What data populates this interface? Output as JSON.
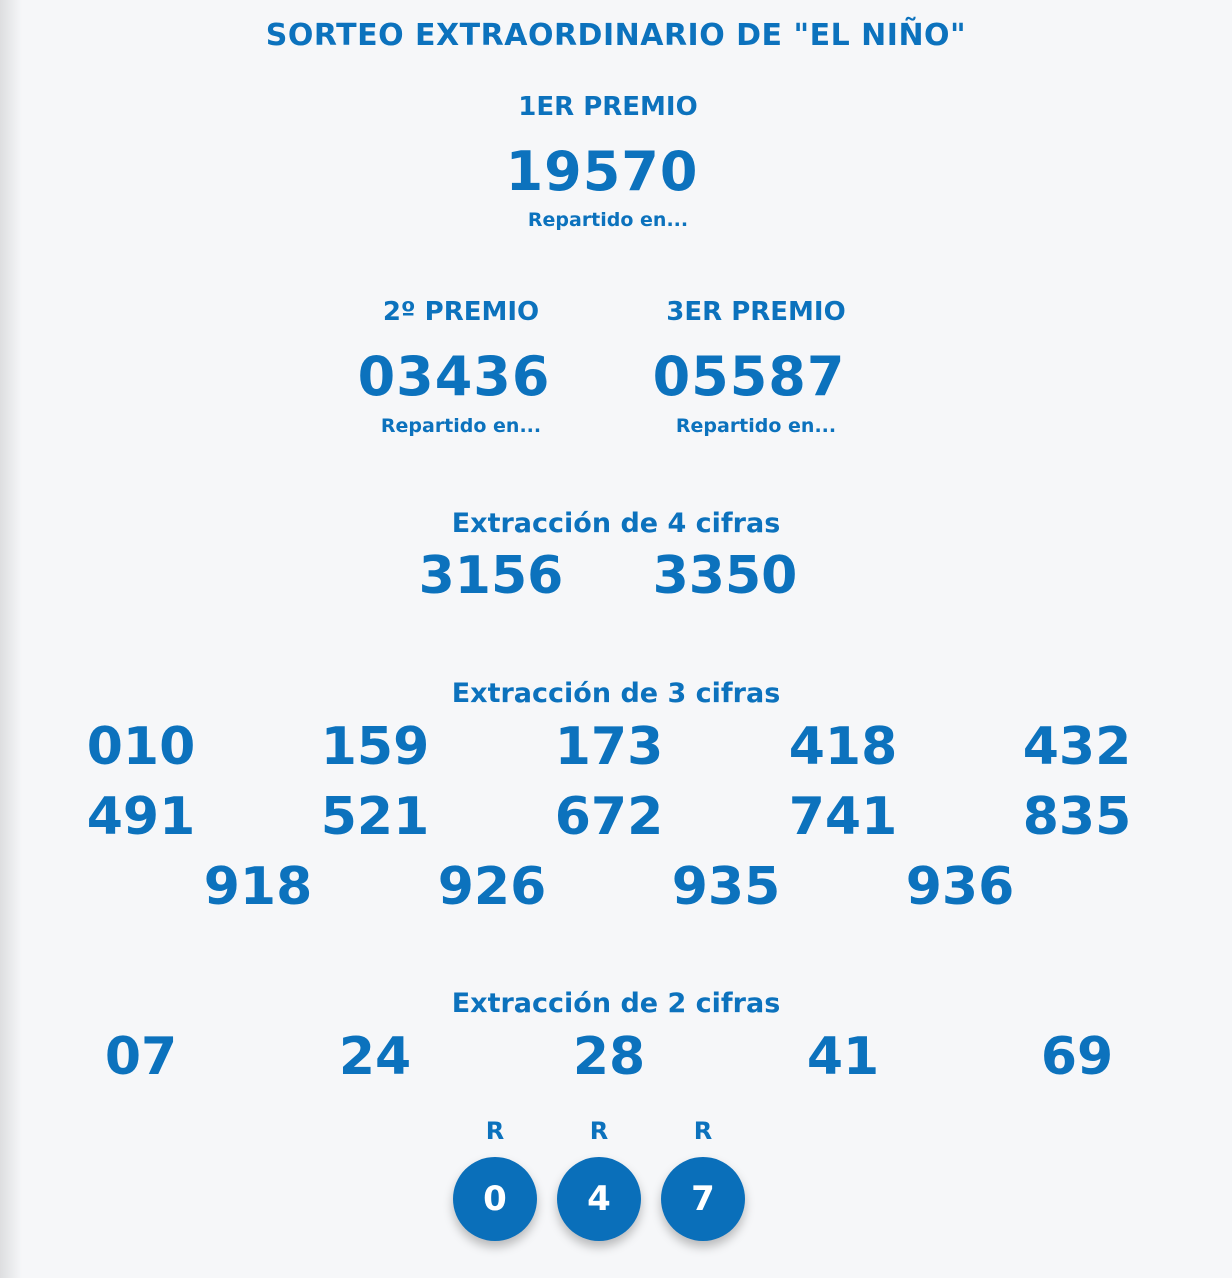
{
  "title": "SORTEO EXTRAORDINARIO DE \"EL NIÑO\"",
  "first_prize": {
    "label": "1ER PREMIO",
    "number": "19570",
    "link": "Repartido en..."
  },
  "second_prize": {
    "label": "2º PREMIO",
    "number": "03436",
    "link": "Repartido en..."
  },
  "third_prize": {
    "label": "3ER PREMIO",
    "number": "05587",
    "link": "Repartido en..."
  },
  "four_digits": {
    "label": "Extracción de 4 cifras",
    "numbers": [
      "3156",
      "3350"
    ]
  },
  "three_digits": {
    "label": "Extracción de 3 cifras",
    "numbers": [
      "010",
      "159",
      "173",
      "418",
      "432",
      "491",
      "521",
      "672",
      "741",
      "835",
      "918",
      "926",
      "935",
      "936"
    ]
  },
  "two_digits": {
    "label": "Extracción de 2 cifras",
    "numbers": [
      "07",
      "24",
      "28",
      "41",
      "69"
    ]
  },
  "reintegros": {
    "tag": "R",
    "numbers": [
      "0",
      "4",
      "7"
    ]
  },
  "colors": {
    "accent": "#0c72bd",
    "ball": "#0a6fba",
    "background": "#f6f7f9"
  }
}
